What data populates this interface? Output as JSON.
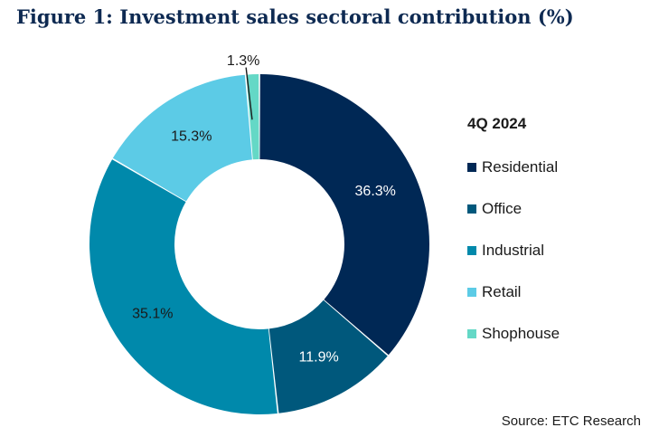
{
  "chart_data": {
    "type": "pie",
    "title": "Figure 1: Investment sales sectoral contribution (%)",
    "legend_title": "4Q 2024",
    "legend_position": "right",
    "categories": [
      "Residential",
      "Office",
      "Industrial",
      "Retail",
      "Shophouse"
    ],
    "values": [
      36.3,
      11.9,
      35.1,
      15.3,
      1.3
    ],
    "data_labels": [
      "36.3%",
      "11.9%",
      "35.1%",
      "15.3%",
      "1.3%"
    ],
    "colors": [
      "#002855",
      "#00587c",
      "#0089ab",
      "#5ccbe6",
      "#64d8c6"
    ],
    "label_colors": [
      "#ffffff",
      "#ffffff",
      "#1a1a1a",
      "#1a1a1a",
      "#1a1a1a"
    ],
    "donut": true
  },
  "source": "Source: ETC Research"
}
